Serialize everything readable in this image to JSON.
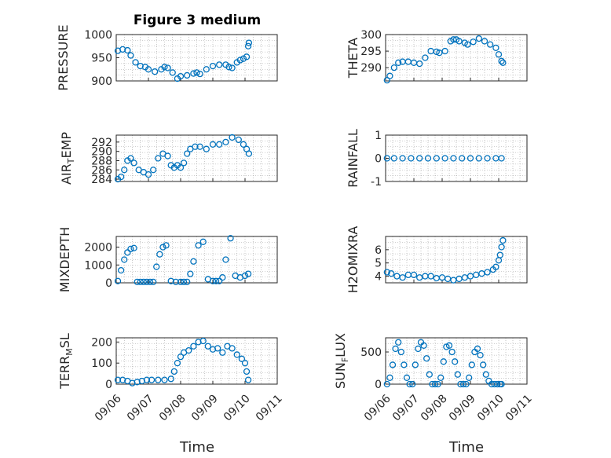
{
  "figure": {
    "title": "Figure 3 medium",
    "xlabel": "Time",
    "x_tick_labels": [
      "09/06",
      "09/07",
      "09/08",
      "09/09",
      "09/10",
      "09/11"
    ],
    "marker_color": "#0072BD"
  },
  "chart_data": [
    {
      "type": "scatter",
      "ylabel": "PRESSURE",
      "ylim": [
        900,
        1000
      ],
      "yticks": [
        900,
        950,
        1000
      ],
      "xlim": [
        0,
        5
      ],
      "grid": "on",
      "x": [
        0.05,
        0.2,
        0.35,
        0.45,
        0.6,
        0.75,
        0.9,
        1.0,
        1.2,
        1.4,
        1.5,
        1.6,
        1.75,
        1.9,
        2.0,
        2.2,
        2.4,
        2.5,
        2.6,
        2.8,
        3.0,
        3.2,
        3.4,
        3.5,
        3.6,
        3.75,
        3.85,
        3.95,
        4.05,
        4.1,
        4.12
      ],
      "y": [
        965,
        968,
        966,
        955,
        940,
        932,
        930,
        925,
        920,
        925,
        930,
        928,
        918,
        905,
        910,
        912,
        916,
        918,
        915,
        925,
        932,
        935,
        935,
        930,
        928,
        940,
        945,
        948,
        952,
        975,
        982
      ]
    },
    {
      "type": "scatter",
      "ylabel": "THETA",
      "ylim": [
        286,
        300
      ],
      "yticks": [
        290,
        295,
        300
      ],
      "xlim": [
        0,
        5
      ],
      "grid": "on",
      "x": [
        0.05,
        0.15,
        0.3,
        0.45,
        0.6,
        0.8,
        1.0,
        1.2,
        1.4,
        1.6,
        1.8,
        1.9,
        2.1,
        2.3,
        2.4,
        2.5,
        2.6,
        2.8,
        2.9,
        3.1,
        3.3,
        3.5,
        3.7,
        3.9,
        4.0,
        4.1,
        4.15
      ],
      "y": [
        286.2,
        287.5,
        290,
        291.5,
        291.8,
        291.8,
        291.5,
        291.2,
        293,
        295,
        294.8,
        294.5,
        295,
        298,
        298.5,
        298.5,
        298,
        297.5,
        297,
        297.8,
        298.8,
        298,
        297,
        296,
        294,
        292,
        291.5
      ]
    },
    {
      "type": "scatter",
      "ylabel": "AIR_TEMP",
      "ylim": [
        283.5,
        293.5
      ],
      "yticks": [
        284,
        286,
        288,
        290,
        292
      ],
      "xlim": [
        0,
        5
      ],
      "grid": "on",
      "x": [
        0.05,
        0.15,
        0.25,
        0.35,
        0.45,
        0.55,
        0.7,
        0.85,
        1.0,
        1.15,
        1.3,
        1.45,
        1.6,
        1.7,
        1.8,
        1.9,
        2.0,
        2.1,
        2.2,
        2.3,
        2.45,
        2.6,
        2.8,
        3.0,
        3.2,
        3.4,
        3.6,
        3.8,
        3.95,
        4.05,
        4.12
      ],
      "y": [
        284,
        284.5,
        286,
        288,
        288.5,
        287.5,
        286,
        285.5,
        285,
        286,
        288.5,
        289.5,
        289,
        287,
        286.5,
        287,
        286.5,
        287.5,
        289.5,
        290.5,
        291,
        291,
        290.5,
        291.5,
        291.5,
        292,
        293,
        292.5,
        291.5,
        290.5,
        289.5
      ]
    },
    {
      "type": "scatter",
      "ylabel": "RAINFALL",
      "ylim": [
        -1,
        1
      ],
      "yticks": [
        -1,
        0,
        1
      ],
      "xlim": [
        0,
        5
      ],
      "grid": "on",
      "x": [
        0.05,
        0.3,
        0.6,
        0.9,
        1.2,
        1.5,
        1.8,
        2.1,
        2.4,
        2.7,
        3.0,
        3.3,
        3.6,
        3.9,
        4.1
      ],
      "y": [
        0,
        0,
        0,
        0,
        0,
        0,
        0,
        0,
        0,
        0,
        0,
        0,
        0,
        0,
        0
      ]
    },
    {
      "type": "scatter",
      "ylabel": "MIXDEPTH",
      "ylim": [
        0,
        2600
      ],
      "yticks": [
        0,
        1000,
        2000
      ],
      "xlim": [
        0,
        5
      ],
      "grid": "on",
      "x": [
        0.05,
        0.15,
        0.25,
        0.35,
        0.45,
        0.55,
        0.65,
        0.75,
        0.85,
        0.95,
        1.05,
        1.15,
        1.25,
        1.35,
        1.45,
        1.55,
        1.7,
        1.85,
        2.0,
        2.1,
        2.2,
        2.3,
        2.4,
        2.55,
        2.7,
        2.85,
        3.0,
        3.1,
        3.2,
        3.3,
        3.4,
        3.55,
        3.7,
        3.85,
        4.0,
        4.1
      ],
      "y": [
        100,
        700,
        1300,
        1700,
        1900,
        1950,
        50,
        50,
        50,
        50,
        50,
        50,
        900,
        1600,
        2000,
        2100,
        100,
        50,
        50,
        50,
        50,
        500,
        1200,
        2100,
        2300,
        200,
        100,
        100,
        100,
        300,
        1300,
        2500,
        400,
        300,
        400,
        500
      ]
    },
    {
      "type": "scatter",
      "ylabel": "H2OMIXRA",
      "ylim": [
        3.5,
        7
      ],
      "yticks": [
        4,
        5,
        6
      ],
      "xlim": [
        0,
        5
      ],
      "grid": "on",
      "x": [
        0.05,
        0.2,
        0.4,
        0.6,
        0.8,
        1.0,
        1.2,
        1.4,
        1.6,
        1.8,
        2.0,
        2.2,
        2.4,
        2.6,
        2.8,
        3.0,
        3.2,
        3.4,
        3.6,
        3.8,
        3.9,
        4.0,
        4.05,
        4.1,
        4.15
      ],
      "y": [
        4.3,
        4.2,
        4.0,
        3.9,
        4.1,
        4.1,
        3.9,
        4.0,
        4.0,
        3.85,
        3.9,
        3.8,
        3.7,
        3.8,
        3.9,
        4.0,
        4.1,
        4.2,
        4.3,
        4.5,
        4.7,
        5.2,
        5.6,
        6.2,
        6.7
      ]
    },
    {
      "type": "scatter",
      "ylabel": "TERR_MSL",
      "ylim": [
        0,
        220
      ],
      "yticks": [
        0,
        100,
        200
      ],
      "xlim": [
        0,
        5
      ],
      "grid": "on",
      "x": [
        0.05,
        0.2,
        0.35,
        0.5,
        0.65,
        0.8,
        0.95,
        1.1,
        1.3,
        1.5,
        1.7,
        1.8,
        1.9,
        2.0,
        2.1,
        2.25,
        2.4,
        2.55,
        2.7,
        2.85,
        3.0,
        3.15,
        3.3,
        3.45,
        3.6,
        3.75,
        3.9,
        4.0,
        4.05,
        4.1
      ],
      "y": [
        20,
        20,
        15,
        5,
        10,
        15,
        20,
        20,
        20,
        20,
        25,
        60,
        100,
        130,
        150,
        160,
        180,
        200,
        205,
        180,
        165,
        170,
        150,
        180,
        170,
        140,
        120,
        100,
        60,
        20
      ]
    },
    {
      "type": "scatter",
      "ylabel": "SUN_FLUX",
      "ylim": [
        0,
        720
      ],
      "yticks": [
        0,
        500
      ],
      "xlim": [
        0,
        5
      ],
      "grid": "on",
      "x": [
        0.05,
        0.15,
        0.25,
        0.35,
        0.45,
        0.55,
        0.65,
        0.75,
        0.85,
        0.95,
        1.05,
        1.15,
        1.25,
        1.35,
        1.45,
        1.55,
        1.65,
        1.75,
        1.85,
        1.95,
        2.05,
        2.15,
        2.25,
        2.35,
        2.45,
        2.55,
        2.65,
        2.75,
        2.85,
        2.95,
        3.05,
        3.15,
        3.25,
        3.35,
        3.45,
        3.55,
        3.65,
        3.75,
        3.85,
        3.95,
        4.05,
        4.1
      ],
      "y": [
        0,
        100,
        300,
        550,
        650,
        500,
        300,
        100,
        0,
        0,
        300,
        550,
        650,
        600,
        400,
        150,
        0,
        0,
        0,
        100,
        350,
        580,
        600,
        500,
        350,
        150,
        0,
        0,
        0,
        100,
        300,
        500,
        550,
        450,
        300,
        150,
        50,
        0,
        0,
        0,
        0,
        0
      ]
    }
  ]
}
